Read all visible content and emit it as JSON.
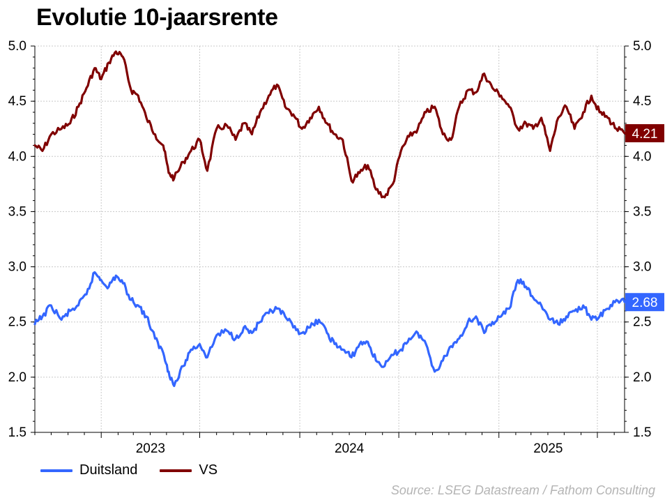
{
  "title": "Evolutie 10-jaarsrente",
  "source": "Source: LSEG Datastream / Fathom Consulting",
  "colors": {
    "duitsland": "#3366ff",
    "vs": "#800000",
    "grid": "#c8c8c8"
  },
  "chart_data": {
    "type": "line",
    "title": "Evolutie 10-jaarsrente",
    "xlabel": "",
    "ylabel": "",
    "x_range": [
      "2022-09-01",
      "2025-08-20"
    ],
    "ylim": [
      1.5,
      5.0
    ],
    "yticks": [
      1.5,
      2.0,
      2.5,
      3.0,
      3.5,
      4.0,
      4.5,
      5.0
    ],
    "ytick_labels": [
      "1.5",
      "2.0",
      "2.5",
      "3.0",
      "3.5",
      "4.0",
      "4.5",
      "5.0"
    ],
    "x_tick_labels": [
      {
        "label": "2023",
        "date": "2023-01-01"
      },
      {
        "label": "2024",
        "date": "2024-01-01"
      },
      {
        "label": "2025",
        "date": "2025-01-01"
      }
    ],
    "dual_y_axis": true,
    "grid": true,
    "legend": "bottom-left",
    "series": [
      {
        "name": "VS",
        "color": "#800000",
        "last_label": "4.21",
        "points": [
          [
            "2022-09-01",
            4.1
          ],
          [
            "2022-09-15",
            4.05
          ],
          [
            "2022-10-01",
            4.2
          ],
          [
            "2022-10-20",
            4.25
          ],
          [
            "2022-11-05",
            4.3
          ],
          [
            "2022-11-20",
            4.45
          ],
          [
            "2022-12-05",
            4.62
          ],
          [
            "2022-12-20",
            4.8
          ],
          [
            "2023-01-01",
            4.7
          ],
          [
            "2023-01-15",
            4.85
          ],
          [
            "2023-01-28",
            4.95
          ],
          [
            "2023-02-10",
            4.9
          ],
          [
            "2023-02-25",
            4.6
          ],
          [
            "2023-03-10",
            4.55
          ],
          [
            "2023-03-25",
            4.35
          ],
          [
            "2023-04-10",
            4.2
          ],
          [
            "2023-04-25",
            4.1
          ],
          [
            "2023-05-05",
            3.85
          ],
          [
            "2023-05-15",
            3.8
          ],
          [
            "2023-06-01",
            3.95
          ],
          [
            "2023-06-15",
            4.05
          ],
          [
            "2023-07-01",
            4.15
          ],
          [
            "2023-07-15",
            3.87
          ],
          [
            "2023-08-01",
            4.25
          ],
          [
            "2023-08-20",
            4.28
          ],
          [
            "2023-09-05",
            4.15
          ],
          [
            "2023-09-20",
            4.3
          ],
          [
            "2023-10-05",
            4.2
          ],
          [
            "2023-10-20",
            4.4
          ],
          [
            "2023-11-05",
            4.55
          ],
          [
            "2023-11-20",
            4.65
          ],
          [
            "2023-12-05",
            4.45
          ],
          [
            "2023-12-20",
            4.38
          ],
          [
            "2024-01-05",
            4.25
          ],
          [
            "2024-01-20",
            4.35
          ],
          [
            "2024-02-05",
            4.45
          ],
          [
            "2024-02-20",
            4.3
          ],
          [
            "2024-03-05",
            4.2
          ],
          [
            "2024-03-20",
            4.15
          ],
          [
            "2024-04-05",
            3.78
          ],
          [
            "2024-04-20",
            3.85
          ],
          [
            "2024-05-05",
            3.92
          ],
          [
            "2024-05-20",
            3.7
          ],
          [
            "2024-06-05",
            3.63
          ],
          [
            "2024-06-20",
            3.75
          ],
          [
            "2024-07-05",
            4.05
          ],
          [
            "2024-07-20",
            4.18
          ],
          [
            "2024-08-05",
            4.25
          ],
          [
            "2024-08-20",
            4.4
          ],
          [
            "2024-09-05",
            4.45
          ],
          [
            "2024-09-20",
            4.2
          ],
          [
            "2024-10-05",
            4.15
          ],
          [
            "2024-10-20",
            4.45
          ],
          [
            "2024-11-05",
            4.6
          ],
          [
            "2024-11-20",
            4.58
          ],
          [
            "2024-12-05",
            4.75
          ],
          [
            "2024-12-20",
            4.62
          ],
          [
            "2025-01-05",
            4.55
          ],
          [
            "2025-01-20",
            4.45
          ],
          [
            "2025-02-05",
            4.25
          ],
          [
            "2025-02-20",
            4.3
          ],
          [
            "2025-03-05",
            4.25
          ],
          [
            "2025-03-20",
            4.35
          ],
          [
            "2025-04-05",
            4.05
          ],
          [
            "2025-04-20",
            4.35
          ],
          [
            "2025-05-05",
            4.45
          ],
          [
            "2025-05-20",
            4.25
          ],
          [
            "2025-06-05",
            4.4
          ],
          [
            "2025-06-20",
            4.55
          ],
          [
            "2025-07-05",
            4.4
          ],
          [
            "2025-07-20",
            4.35
          ],
          [
            "2025-08-05",
            4.25
          ],
          [
            "2025-08-20",
            4.21
          ]
        ]
      },
      {
        "name": "Duitsland",
        "color": "#3366ff",
        "last_label": "2.68",
        "points": [
          [
            "2022-09-01",
            2.48
          ],
          [
            "2022-09-15",
            2.55
          ],
          [
            "2022-10-01",
            2.65
          ],
          [
            "2022-10-20",
            2.52
          ],
          [
            "2022-11-05",
            2.6
          ],
          [
            "2022-11-20",
            2.65
          ],
          [
            "2022-12-05",
            2.75
          ],
          [
            "2022-12-20",
            2.95
          ],
          [
            "2023-01-01",
            2.88
          ],
          [
            "2023-01-15",
            2.82
          ],
          [
            "2023-01-28",
            2.92
          ],
          [
            "2023-02-10",
            2.85
          ],
          [
            "2023-02-25",
            2.7
          ],
          [
            "2023-03-10",
            2.65
          ],
          [
            "2023-03-25",
            2.55
          ],
          [
            "2023-04-10",
            2.35
          ],
          [
            "2023-04-25",
            2.22
          ],
          [
            "2023-05-05",
            2.05
          ],
          [
            "2023-05-15",
            1.92
          ],
          [
            "2023-06-01",
            2.1
          ],
          [
            "2023-06-15",
            2.25
          ],
          [
            "2023-07-01",
            2.3
          ],
          [
            "2023-07-15",
            2.18
          ],
          [
            "2023-08-01",
            2.38
          ],
          [
            "2023-08-20",
            2.42
          ],
          [
            "2023-09-05",
            2.35
          ],
          [
            "2023-09-20",
            2.45
          ],
          [
            "2023-10-05",
            2.4
          ],
          [
            "2023-10-20",
            2.5
          ],
          [
            "2023-11-05",
            2.58
          ],
          [
            "2023-11-20",
            2.62
          ],
          [
            "2023-12-05",
            2.55
          ],
          [
            "2023-12-20",
            2.45
          ],
          [
            "2024-01-05",
            2.4
          ],
          [
            "2024-01-20",
            2.45
          ],
          [
            "2024-02-05",
            2.52
          ],
          [
            "2024-02-20",
            2.4
          ],
          [
            "2024-03-05",
            2.3
          ],
          [
            "2024-03-20",
            2.25
          ],
          [
            "2024-04-05",
            2.18
          ],
          [
            "2024-04-20",
            2.3
          ],
          [
            "2024-05-05",
            2.32
          ],
          [
            "2024-05-20",
            2.15
          ],
          [
            "2024-06-05",
            2.1
          ],
          [
            "2024-06-20",
            2.2
          ],
          [
            "2024-07-05",
            2.25
          ],
          [
            "2024-07-20",
            2.35
          ],
          [
            "2024-08-05",
            2.4
          ],
          [
            "2024-08-20",
            2.3
          ],
          [
            "2024-09-05",
            2.05
          ],
          [
            "2024-09-20",
            2.15
          ],
          [
            "2024-10-05",
            2.28
          ],
          [
            "2024-10-20",
            2.35
          ],
          [
            "2024-11-05",
            2.5
          ],
          [
            "2024-11-20",
            2.55
          ],
          [
            "2024-12-05",
            2.4
          ],
          [
            "2024-12-20",
            2.5
          ],
          [
            "2025-01-05",
            2.55
          ],
          [
            "2025-01-20",
            2.62
          ],
          [
            "2025-02-05",
            2.88
          ],
          [
            "2025-02-20",
            2.82
          ],
          [
            "2025-03-05",
            2.72
          ],
          [
            "2025-03-20",
            2.65
          ],
          [
            "2025-04-05",
            2.52
          ],
          [
            "2025-04-20",
            2.48
          ],
          [
            "2025-05-05",
            2.55
          ],
          [
            "2025-05-20",
            2.6
          ],
          [
            "2025-06-05",
            2.65
          ],
          [
            "2025-06-20",
            2.52
          ],
          [
            "2025-07-05",
            2.55
          ],
          [
            "2025-07-20",
            2.62
          ],
          [
            "2025-08-05",
            2.7
          ],
          [
            "2025-08-20",
            2.68
          ]
        ]
      }
    ]
  }
}
